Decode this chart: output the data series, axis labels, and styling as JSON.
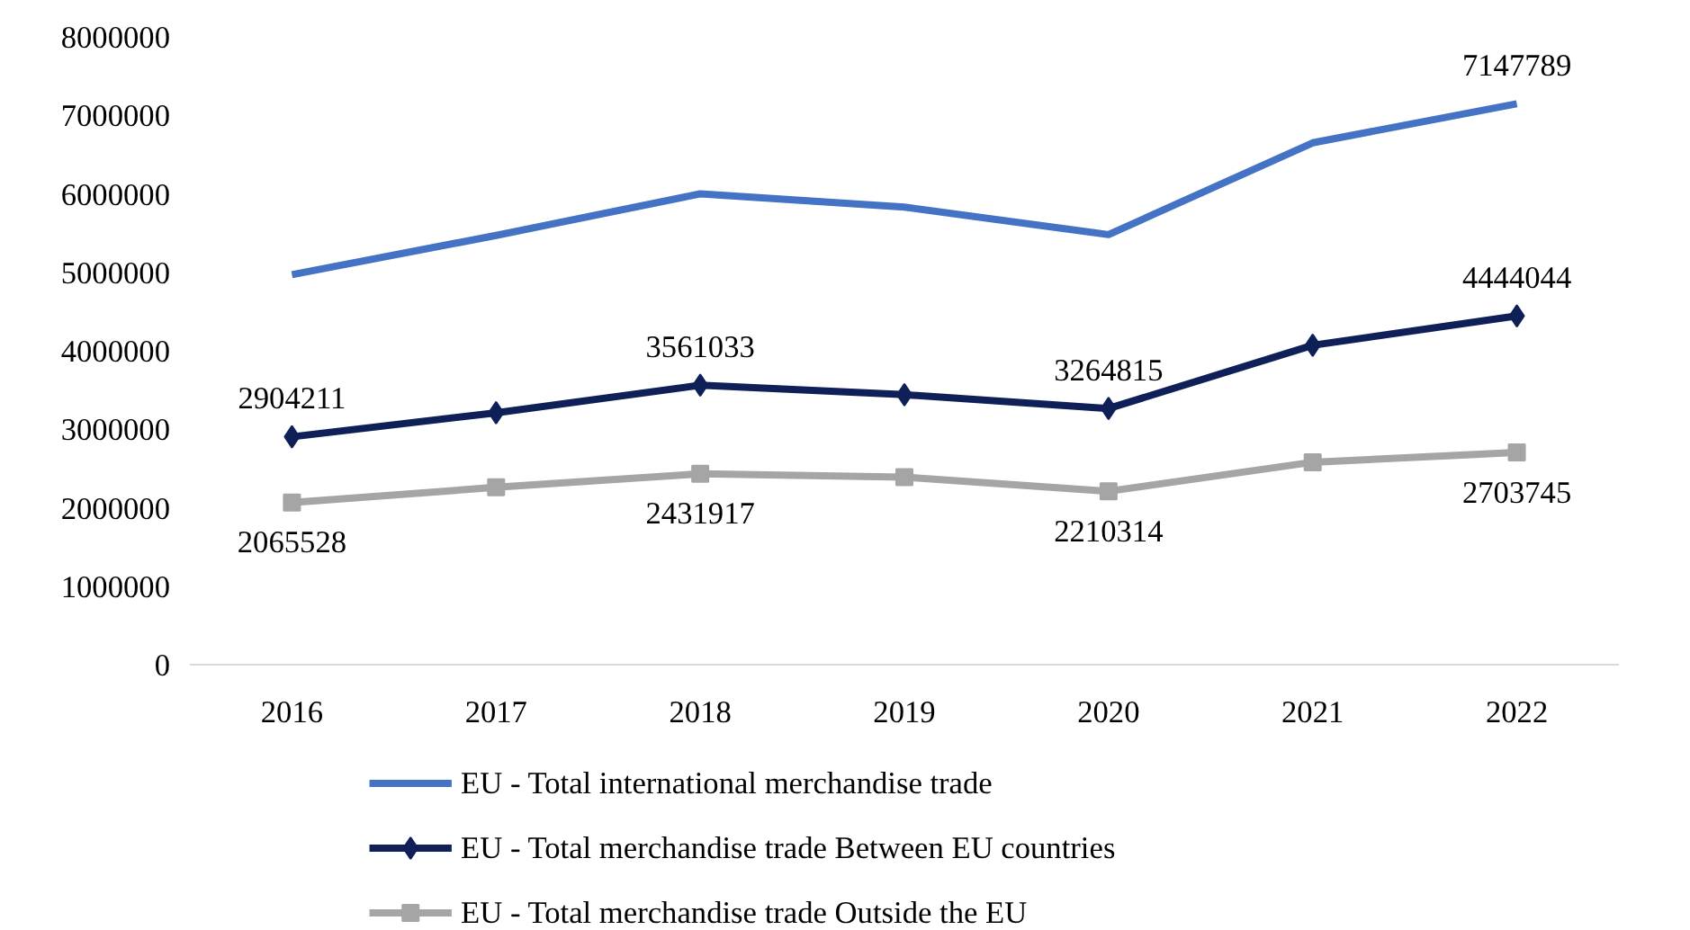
{
  "chart_data": {
    "type": "line",
    "categories": [
      "2016",
      "2017",
      "2018",
      "2019",
      "2020",
      "2021",
      "2022"
    ],
    "ylim": [
      0,
      8000000
    ],
    "yticks": [
      0,
      1000000,
      2000000,
      3000000,
      4000000,
      5000000,
      6000000,
      7000000,
      8000000
    ],
    "grid": false,
    "legend": "bottom",
    "line_style": "solid",
    "series": [
      {
        "name": "EU  - Total international merchandise trade",
        "color": "#4472c4",
        "marker": "none",
        "values": [
          4970000,
          5470000,
          6000000,
          5830000,
          5480000,
          6650000,
          7147789
        ],
        "value_labels": [
          null,
          null,
          null,
          null,
          null,
          null,
          "7147789"
        ]
      },
      {
        "name": "EU  - Total merchandise trade Between EU countries",
        "color": "#0e2057",
        "marker": "diamond",
        "values": [
          2904211,
          3210000,
          3561033,
          3440000,
          3264815,
          4070000,
          4444044
        ],
        "value_labels": [
          "2904211",
          null,
          "3561033",
          null,
          "3264815",
          null,
          "4444044"
        ]
      },
      {
        "name": "EU  - Total merchandise trade Outside the EU",
        "color": "#a5a5a5",
        "marker": "square",
        "values": [
          2065528,
          2260000,
          2431917,
          2390000,
          2210314,
          2580000,
          2703745
        ],
        "value_labels": [
          "2065528",
          null,
          "2431917",
          null,
          "2210314",
          null,
          "2703745"
        ]
      }
    ]
  }
}
